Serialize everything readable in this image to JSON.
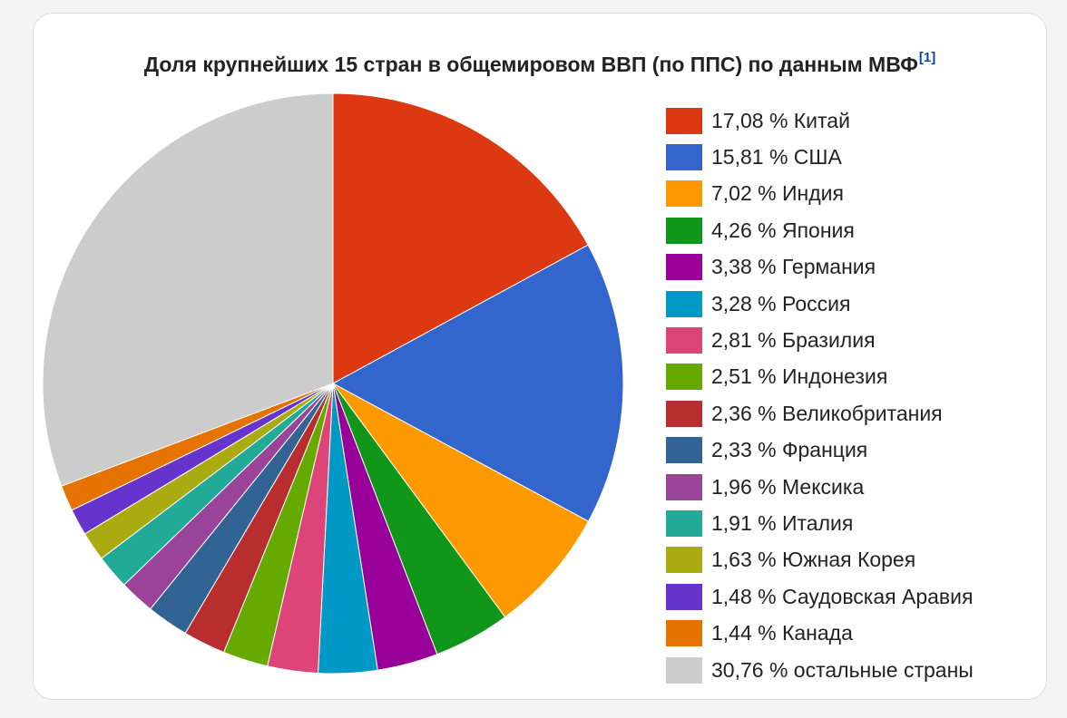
{
  "chart_data": {
    "type": "pie",
    "title": "Доля крупнейших 15 стран в общемировом ВВП (по ППС) по данным МВФ",
    "title_ref": "[1]",
    "legend_position": "right",
    "slices": [
      {
        "label": "17,08 % Китай",
        "value": 17.08,
        "color": "#dc3912"
      },
      {
        "label": "15,81 % США",
        "value": 15.81,
        "color": "#3366cc"
      },
      {
        "label": "7,02 % Индия",
        "value": 7.02,
        "color": "#ff9900"
      },
      {
        "label": "4,26 % Япония",
        "value": 4.26,
        "color": "#109618"
      },
      {
        "label": "3,38 % Германия",
        "value": 3.38,
        "color": "#990099"
      },
      {
        "label": "3,28 % Россия",
        "value": 3.28,
        "color": "#0099c6"
      },
      {
        "label": "2,81 % Бразилия",
        "value": 2.81,
        "color": "#dd4477"
      },
      {
        "label": "2,51 % Индонезия",
        "value": 2.51,
        "color": "#66aa00"
      },
      {
        "label": "2,36 % Великобритания",
        "value": 2.36,
        "color": "#b82e2e"
      },
      {
        "label": "2,33 % Франция",
        "value": 2.33,
        "color": "#316395"
      },
      {
        "label": "1,96 % Мексика",
        "value": 1.96,
        "color": "#994499"
      },
      {
        "label": "1,91 % Италия",
        "value": 1.91,
        "color": "#22aa99"
      },
      {
        "label": "1,63 % Южная Корея",
        "value": 1.63,
        "color": "#aaaa11"
      },
      {
        "label": "1,48 % Саудовская Аравия",
        "value": 1.48,
        "color": "#6633cc"
      },
      {
        "label": "1,44 % Канада",
        "value": 1.44,
        "color": "#e67300"
      },
      {
        "label": "30,76 % остальные страны",
        "value": 30.76,
        "color": "#cccccc"
      }
    ]
  }
}
